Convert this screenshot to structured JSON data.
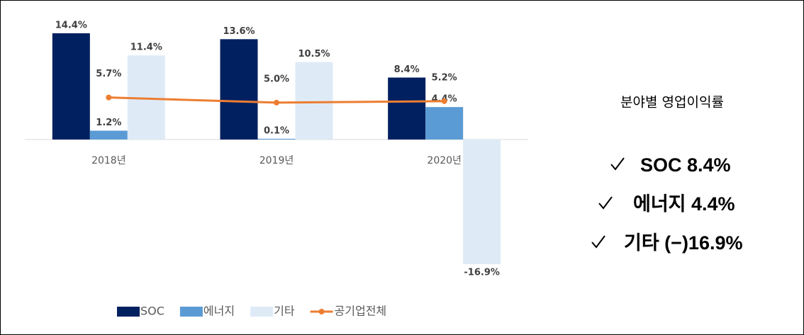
{
  "chart_data": {
    "type": "bar",
    "categories": [
      "2018년",
      "2019년",
      "2020년"
    ],
    "series": [
      {
        "name": "SOC",
        "type": "bar",
        "color": "#002060",
        "values": [
          14.4,
          13.6,
          8.4
        ],
        "value_labels": [
          "14.4%",
          "13.6%",
          "8.4%"
        ]
      },
      {
        "name": "에너지",
        "type": "bar",
        "color": "#5b9bd5",
        "values": [
          1.2,
          0.1,
          4.4
        ],
        "value_labels": [
          "1.2%",
          "0.1%",
          "4.4%"
        ]
      },
      {
        "name": "기타",
        "type": "bar",
        "color": "#deebf7",
        "values": [
          11.4,
          10.5,
          -16.9
        ],
        "value_labels": [
          "11.4%",
          "10.5%",
          "-16.9%"
        ]
      },
      {
        "name": "공기업전체",
        "type": "line",
        "color": "#ed7d31",
        "values": [
          5.7,
          5.0,
          5.2
        ],
        "value_labels": [
          "5.7%",
          "5.0%",
          "5.2%"
        ]
      }
    ],
    "legend": "bottom"
  },
  "side_panel": {
    "title": "분야별 영업이익률",
    "items": [
      "SOC 8.4%",
      "에너지 4.4%",
      "기타 (−)16.9%"
    ]
  }
}
